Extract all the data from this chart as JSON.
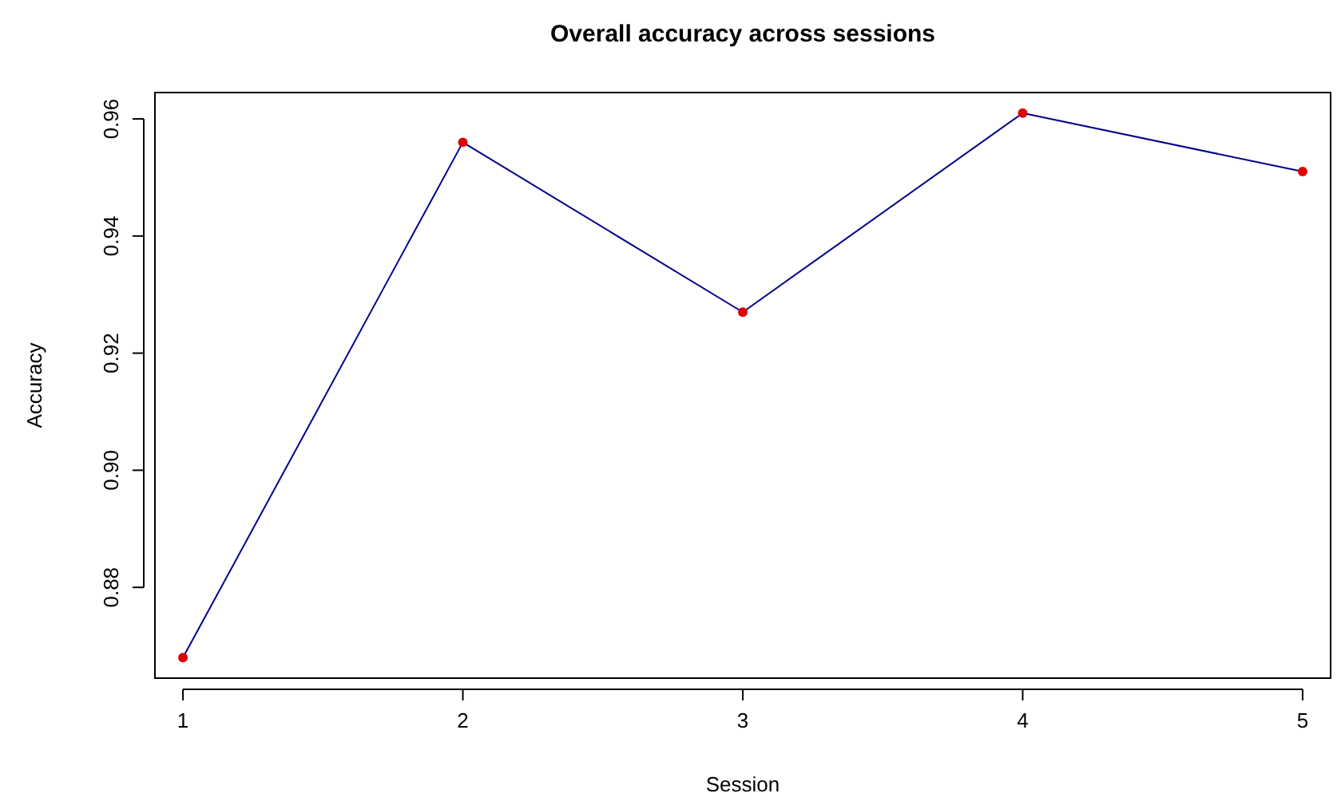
{
  "chart_data": {
    "type": "line",
    "title": "Overall accuracy across sessions",
    "xlabel": "Session",
    "ylabel": "Accuracy",
    "x": [
      1,
      2,
      3,
      4,
      5
    ],
    "series": [
      {
        "color": "#00008b",
        "marker": "none",
        "values": [
          0.868,
          0.956,
          0.927,
          0.961,
          0.951
        ]
      },
      {
        "type": "scatter",
        "color": "#dd0000",
        "marker": "circle",
        "values": [
          0.868,
          0.956,
          0.927,
          0.961,
          0.951
        ]
      }
    ],
    "line_style": "solid",
    "grid": false,
    "xlim": [
      0.9,
      5.1
    ],
    "xticks": [
      1,
      2,
      3,
      4,
      5
    ],
    "ylim": [
      0.8645,
      0.9645
    ],
    "yticks": [
      0.88,
      {
        "value": 0.9,
        "label": "0.90"
      },
      0.92,
      0.94,
      0.96
    ]
  }
}
